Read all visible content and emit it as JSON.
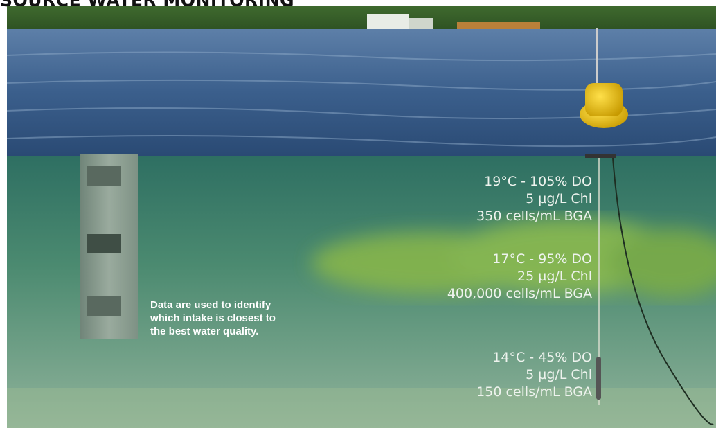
{
  "header": {
    "title": "SOURCE WATER MONITORING"
  },
  "caption": {
    "lines": [
      "Data are used to identify",
      "which intake is closest to",
      "the best water quality."
    ]
  },
  "readings": [
    {
      "lines": [
        "19°C - 105% DO",
        "5 µg/L Chl",
        "350 cells/mL BGA"
      ]
    },
    {
      "lines": [
        "17°C - 95% DO",
        "25 µg/L Chl",
        "400,000 cells/mL BGA"
      ]
    },
    {
      "lines": [
        "14°C - 45% DO",
        "5 µg/L Chl",
        "150 cells/mL BGA"
      ]
    }
  ]
}
